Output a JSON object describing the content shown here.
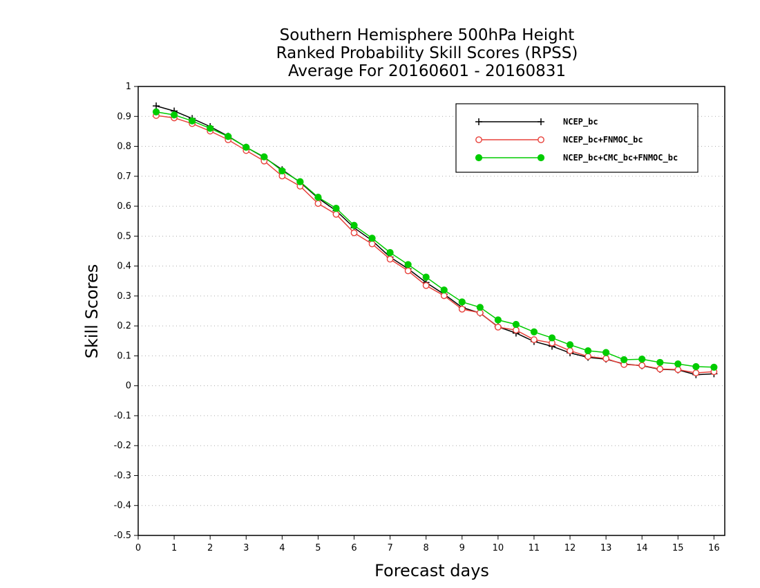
{
  "chart_data": {
    "type": "line",
    "title_lines": [
      "Southern Hemisphere 500hPa Height",
      "Ranked Probability Skill Scores (RPSS)",
      "Average For 20160601 - 20160831"
    ],
    "xlabel": "Forecast days",
    "ylabel": "Skill Scores",
    "xlim": [
      0,
      16.3
    ],
    "ylim": [
      -0.5,
      1
    ],
    "xticks": [
      0,
      1,
      2,
      3,
      4,
      5,
      6,
      7,
      8,
      9,
      10,
      11,
      12,
      13,
      14,
      15,
      16
    ],
    "yticks": [
      1,
      0.9,
      0.8,
      0.7,
      0.6,
      0.5,
      0.4,
      0.3,
      0.2,
      0.1,
      0,
      -0.1,
      -0.2,
      -0.3,
      -0.4,
      -0.5
    ],
    "xtick_labels": [
      "0",
      "1",
      "2",
      "3",
      "4",
      "5",
      "6",
      "7",
      "8",
      "9",
      "10",
      "11",
      "12",
      "13",
      "14",
      "15",
      "16"
    ],
    "ytick_labels": [
      "1",
      "0.9",
      "0.8",
      "0.7",
      "0.6",
      "0.5",
      "0.4",
      "0.3",
      "0.2",
      "0.1",
      "0",
      "-0.1",
      "-0.2",
      "-0.3",
      "-0.4",
      "-0.5"
    ],
    "grid": "horizontal-dotted",
    "legend_position": "top-right",
    "x": [
      0.5,
      1,
      1.5,
      2,
      2.5,
      3,
      3.5,
      4,
      4.5,
      5,
      5.5,
      6,
      6.5,
      7,
      7.5,
      8,
      8.5,
      9,
      9.5,
      10,
      10.5,
      11,
      11.5,
      12,
      12.5,
      13,
      13.5,
      14,
      14.5,
      15,
      15.5,
      16
    ],
    "series": [
      {
        "name": "NCEP_bc",
        "color": "#000000",
        "marker": "plus",
        "values": [
          0.935,
          0.918,
          0.893,
          0.866,
          0.834,
          0.797,
          0.763,
          0.722,
          0.68,
          0.627,
          0.585,
          0.528,
          0.485,
          0.43,
          0.391,
          0.345,
          0.306,
          0.262,
          0.243,
          0.197,
          0.176,
          0.148,
          0.132,
          0.11,
          0.095,
          0.089,
          0.073,
          0.067,
          0.055,
          0.053,
          0.037,
          0.04
        ]
      },
      {
        "name": "NCEP_bc+FNMOC_bc",
        "color": "#e8403a",
        "marker": "open-circle",
        "values": [
          0.903,
          0.895,
          0.876,
          0.851,
          0.822,
          0.786,
          0.751,
          0.701,
          0.667,
          0.609,
          0.573,
          0.511,
          0.474,
          0.423,
          0.384,
          0.335,
          0.301,
          0.256,
          0.244,
          0.196,
          0.186,
          0.154,
          0.143,
          0.117,
          0.098,
          0.091,
          0.071,
          0.068,
          0.056,
          0.054,
          0.043,
          0.047
        ]
      },
      {
        "name": "NCEP_bc+CMC_bc+FNMOC_bc",
        "color": "#00cc00",
        "marker": "filled-circle",
        "values": [
          0.915,
          0.905,
          0.885,
          0.86,
          0.833,
          0.797,
          0.765,
          0.718,
          0.682,
          0.63,
          0.593,
          0.536,
          0.493,
          0.445,
          0.405,
          0.363,
          0.32,
          0.28,
          0.262,
          0.22,
          0.205,
          0.18,
          0.16,
          0.137,
          0.117,
          0.111,
          0.087,
          0.089,
          0.078,
          0.073,
          0.064,
          0.062
        ]
      }
    ]
  }
}
